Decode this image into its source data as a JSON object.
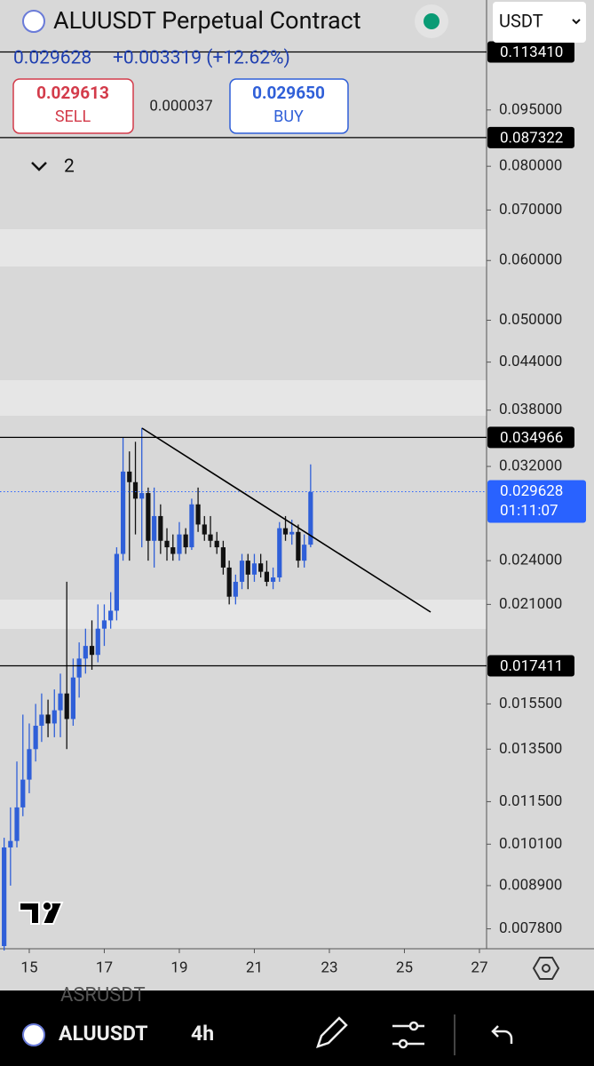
{
  "header": {
    "title": "ALUUSDT Perpetual Contract",
    "last_price": "0.029628",
    "change": "+0.003319 (+12.62%)",
    "sell_price": "0.029613",
    "sell_label": "SELL",
    "spread": "0.000037",
    "buy_price": "0.029650",
    "buy_label": "BUY",
    "currency": "USDT",
    "collapse_count": "2"
  },
  "chart_data": {
    "type": "candlestick",
    "log_scale": true,
    "up_color": "#2f5fd8",
    "down_color": "#111111",
    "x": [
      14.33,
      14.5,
      14.67,
      14.83,
      15,
      15.17,
      15.33,
      15.5,
      15.67,
      15.83,
      16,
      16.17,
      16.33,
      16.5,
      16.67,
      16.83,
      17,
      17.17,
      17.33,
      17.5,
      17.67,
      17.83,
      18,
      18.17,
      18.33,
      18.5,
      18.67,
      18.83,
      19,
      19.17,
      19.33,
      19.5,
      19.67,
      19.83,
      20,
      20.17,
      20.33,
      20.5,
      20.67,
      20.83,
      21,
      21.17,
      21.33,
      21.5,
      21.67,
      21.83,
      22,
      22.17,
      22.33,
      22.5
    ],
    "open": [
      0.0074,
      0.01,
      0.0102,
      0.0113,
      0.0123,
      0.0135,
      0.0145,
      0.015,
      0.0146,
      0.0152,
      0.016,
      0.0148,
      0.0168,
      0.0178,
      0.0185,
      0.018,
      0.0195,
      0.02,
      0.0206,
      0.0245,
      0.0315,
      0.0305,
      0.029,
      0.0295,
      0.0255,
      0.0275,
      0.0255,
      0.025,
      0.0245,
      0.026,
      0.025,
      0.0285,
      0.0268,
      0.026,
      0.0255,
      0.025,
      0.0235,
      0.0215,
      0.0225,
      0.024,
      0.023,
      0.0238,
      0.0232,
      0.0225,
      0.0228,
      0.0265,
      0.026,
      0.0262,
      0.024,
      0.0252
    ],
    "high": [
      0.0103,
      0.0113,
      0.013,
      0.015,
      0.0146,
      0.0155,
      0.016,
      0.0157,
      0.0162,
      0.017,
      0.0225,
      0.0178,
      0.0187,
      0.0195,
      0.02,
      0.021,
      0.021,
      0.0218,
      0.025,
      0.035,
      0.0335,
      0.0345,
      0.036,
      0.03,
      0.03,
      0.0285,
      0.0265,
      0.026,
      0.027,
      0.0265,
      0.029,
      0.03,
      0.0275,
      0.0275,
      0.0262,
      0.0255,
      0.024,
      0.023,
      0.0245,
      0.0245,
      0.0245,
      0.0245,
      0.024,
      0.0235,
      0.027,
      0.0275,
      0.0272,
      0.0268,
      0.026,
      0.0322
    ],
    "low": [
      0.0073,
      0.0089,
      0.01,
      0.011,
      0.0118,
      0.013,
      0.0138,
      0.014,
      0.014,
      0.014,
      0.0135,
      0.0145,
      0.0158,
      0.017,
      0.0172,
      0.0176,
      0.0185,
      0.0195,
      0.02,
      0.024,
      0.024,
      0.026,
      0.025,
      0.024,
      0.0235,
      0.0245,
      0.024,
      0.024,
      0.024,
      0.0245,
      0.0248,
      0.0262,
      0.0255,
      0.025,
      0.0245,
      0.023,
      0.021,
      0.021,
      0.022,
      0.022,
      0.0225,
      0.0228,
      0.0222,
      0.022,
      0.0225,
      0.0255,
      0.0252,
      0.0235,
      0.0235,
      0.025
    ],
    "close": [
      0.01,
      0.0102,
      0.0113,
      0.0123,
      0.0135,
      0.0145,
      0.015,
      0.0146,
      0.0152,
      0.016,
      0.0148,
      0.0168,
      0.0178,
      0.0185,
      0.018,
      0.0195,
      0.02,
      0.0206,
      0.0245,
      0.0315,
      0.0305,
      0.029,
      0.0295,
      0.0255,
      0.0275,
      0.0255,
      0.025,
      0.0245,
      0.026,
      0.025,
      0.0285,
      0.0268,
      0.026,
      0.0255,
      0.025,
      0.0235,
      0.0215,
      0.0225,
      0.024,
      0.023,
      0.0238,
      0.0232,
      0.0225,
      0.0228,
      0.0265,
      0.026,
      0.0262,
      0.024,
      0.0252,
      0.0296
    ],
    "xlim": [
      14.22,
      27.19
    ],
    "xticks": [
      15,
      17,
      19,
      21,
      23,
      25,
      27
    ],
    "ylim": [
      0.00734,
      0.1329
    ],
    "yticks": [
      {
        "value": 0.095,
        "label": "0.095000"
      },
      {
        "value": 0.08,
        "label": "0.080000"
      },
      {
        "value": 0.07,
        "label": "0.070000"
      },
      {
        "value": 0.06,
        "label": "0.060000"
      },
      {
        "value": 0.05,
        "label": "0.050000"
      },
      {
        "value": 0.044,
        "label": "0.044000"
      },
      {
        "value": 0.038,
        "label": "0.038000"
      },
      {
        "value": 0.032,
        "label": "0.032000"
      },
      {
        "value": 0.024,
        "label": "0.024000"
      },
      {
        "value": 0.021,
        "label": "0.021000"
      },
      {
        "value": 0.0155,
        "label": "0.015500"
      },
      {
        "value": 0.0135,
        "label": "0.013500"
      },
      {
        "value": 0.0115,
        "label": "0.011500"
      },
      {
        "value": 0.0101,
        "label": "0.010100"
      },
      {
        "value": 0.0089,
        "label": "0.008900"
      },
      {
        "value": 0.0078,
        "label": "0.007800"
      }
    ],
    "price_lines": [
      {
        "value": 0.11341,
        "label": "0.113410"
      },
      {
        "value": 0.087322,
        "label": "0.087322"
      },
      {
        "value": 0.034966,
        "label": "0.034966"
      },
      {
        "value": 0.017411,
        "label": "0.017411"
      }
    ],
    "current_price": {
      "value": 0.029628,
      "label": "0.029628",
      "countdown": "01:11:07",
      "color": "#2962ff"
    }
  },
  "footer": {
    "previous_symbol": "ASRUSDT",
    "symbol": "ALUUSDT",
    "interval": "4h"
  }
}
